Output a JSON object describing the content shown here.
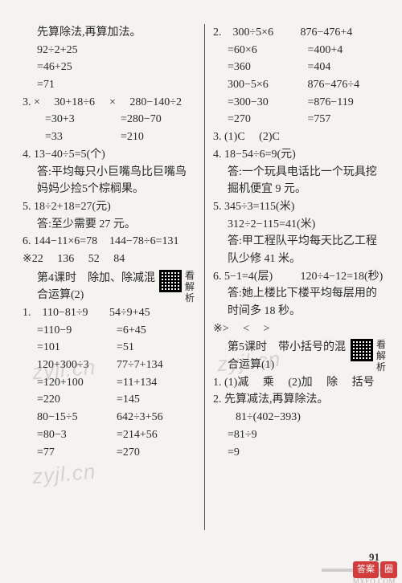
{
  "left": {
    "l01": "先算除法,再算加法。",
    "l02": "92÷2+25",
    "l03": "=46+25",
    "l04": "=71",
    "l05_a": "3. ×　 30+18÷6",
    "l05_b": "×　 280−140÷2",
    "l06_a": "=30+3",
    "l06_b": "=280−70",
    "l07_a": "=33",
    "l07_b": "=210",
    "l08": "4. 13−40÷5=5(个)",
    "l09": "答:平均每只小巨嘴鸟比巨嘴鸟",
    "l10": "妈妈少捡5个棕榈果。",
    "l11": "5. 18÷2+18=27(元)",
    "l12": "答:至少需要 27 元。",
    "l13_a": "6. 144−11×6=78",
    "l13_b": "144−78÷6=131",
    "l14": "※22　 136　 52　 84",
    "section1_title": "第4课时　除加、除减混合运算(2)",
    "qr_label": "看解析",
    "l15_a": "1.　110−81÷9",
    "l15_b": "54÷9+45",
    "l16_a": "=110−9",
    "l16_b": "=6+45",
    "l17_a": "=101",
    "l17_b": "=51",
    "l18_a": "120+300÷3",
    "l18_b": "77÷7+134",
    "l19_a": "=120+100",
    "l19_b": "=11+134",
    "l20_a": "=220",
    "l20_b": "=145",
    "l21_a": "80−15÷5",
    "l21_b": "642÷3+56",
    "l22_a": "=80−3",
    "l22_b": "=214+56",
    "l23_a": "=77",
    "l23_b": "=270"
  },
  "right": {
    "r01_a": "2.　300÷5×6",
    "r01_b": "876−476+4",
    "r02_a": "=60×6",
    "r02_b": "=400+4",
    "r03_a": "=360",
    "r03_b": "=404",
    "r04_a": "300−5×6",
    "r04_b": "876−476÷4",
    "r05_a": "=300−30",
    "r05_b": "=876−119",
    "r06_a": "=270",
    "r06_b": "=757",
    "r07": "3. (1)C　 (2)C",
    "r08": "4. 18−54÷6=9(元)",
    "r09": "答:一个玩具电话比一个玩具挖",
    "r10": "掘机便宜 9 元。",
    "r11": "5. 345÷3=115(米)",
    "r12": "312÷2−115=41(米)",
    "r13": "答:甲工程队平均每天比乙工程",
    "r14": "队少修 41 米。",
    "r15_a": "6. 5−1=4(层)",
    "r15_b": "120÷4−12=18(秒)",
    "r16": "答:她上楼比下楼平均每层用的",
    "r17": "时间多 18 秒。",
    "r18": "※>　 <　 >",
    "section2_title": "第5课时　带小括号的混合运算(1)",
    "qr_label": "看解析",
    "r19": "1. (1)减　 乘　 (2)加　 除　 括号",
    "r20": "2. 先算减法,再算除法。",
    "r21": "81÷(402−393)",
    "r22": "=81÷9",
    "r23": "=9"
  },
  "watermarks": {
    "wm": "zyjl.cn"
  },
  "misc": {
    "page_number": "91",
    "badge1": "答案",
    "badge2": "圈",
    "domain": "MXEQ.COM"
  }
}
